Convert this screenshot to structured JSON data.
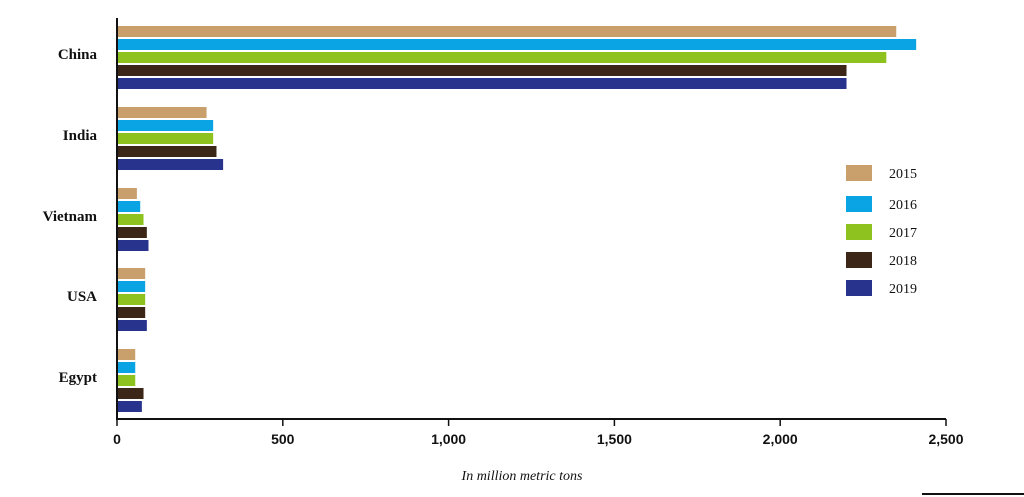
{
  "chart_data": {
    "type": "bar",
    "orientation": "horizontal",
    "categories": [
      "China",
      "India",
      "Vietnam",
      "USA",
      "Egypt"
    ],
    "series": [
      {
        "name": "2015",
        "color": "#c9a06b",
        "values": [
          2350,
          270,
          60,
          85,
          55
        ]
      },
      {
        "name": "2016",
        "color": "#0aa3e3",
        "values": [
          2410,
          290,
          70,
          85,
          55
        ]
      },
      {
        "name": "2017",
        "color": "#8dc21f",
        "values": [
          2320,
          290,
          80,
          85,
          55
        ]
      },
      {
        "name": "2018",
        "color": "#3b2617",
        "values": [
          2200,
          300,
          90,
          85,
          80
        ]
      },
      {
        "name": "2019",
        "color": "#28338e",
        "values": [
          2200,
          320,
          95,
          90,
          75
        ]
      }
    ],
    "xticks": [
      "0",
      "500",
      "1,000",
      "1,500",
      "2,000",
      "2,500"
    ],
    "xlim": [
      0,
      2500
    ],
    "xlabel": "In million metric tons",
    "ylabel": "",
    "title": "",
    "grid": false,
    "legend_position": "right"
  }
}
